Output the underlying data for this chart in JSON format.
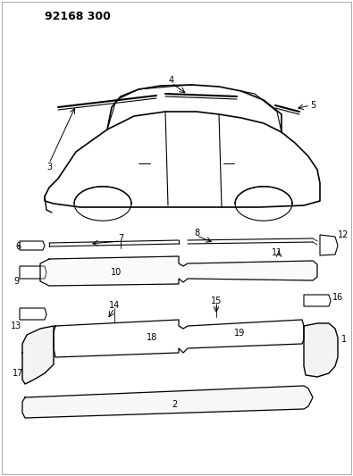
{
  "title": "92168 300",
  "bg_color": "#ffffff",
  "line_color": "#000000",
  "fig_width": 3.95,
  "fig_height": 5.33,
  "dpi": 100
}
